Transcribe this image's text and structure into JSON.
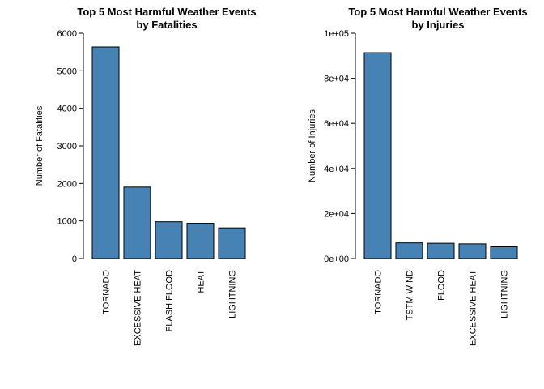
{
  "chart_data": [
    {
      "type": "bar",
      "title": "Top 5 Most Harmful Weather Events",
      "subtitle": "by Fatalities",
      "xlabel": "",
      "ylabel": "Number of Fatalities",
      "categories": [
        "TORNADO",
        "EXCESSIVE HEAT",
        "FLASH FLOOD",
        "HEAT",
        "LIGHTNING"
      ],
      "values": [
        5633,
        1903,
        978,
        937,
        816
      ],
      "ylim": [
        0,
        6000
      ],
      "yticks": [
        0,
        1000,
        2000,
        3000,
        4000,
        5000,
        6000
      ],
      "ytick_labels": [
        "0",
        "1000",
        "2000",
        "3000",
        "4000",
        "5000",
        "6000"
      ],
      "bar_color": "#4682B4",
      "grid": false
    },
    {
      "type": "bar",
      "title": "Top 5 Most Harmful Weather Events",
      "subtitle": "by Injuries",
      "xlabel": "",
      "ylabel": "Number of Injuries",
      "categories": [
        "TORNADO",
        "TSTM WIND",
        "FLOOD",
        "EXCESSIVE HEAT",
        "LIGHTNING"
      ],
      "values": [
        91346,
        6957,
        6789,
        6525,
        5230
      ],
      "ylim": [
        0,
        100000
      ],
      "yticks": [
        0,
        20000,
        40000,
        60000,
        80000,
        100000
      ],
      "ytick_labels": [
        "0e+00",
        "2e+04",
        "4e+04",
        "6e+04",
        "8e+04",
        "1e+05"
      ],
      "bar_color": "#4682B4",
      "grid": false
    }
  ]
}
